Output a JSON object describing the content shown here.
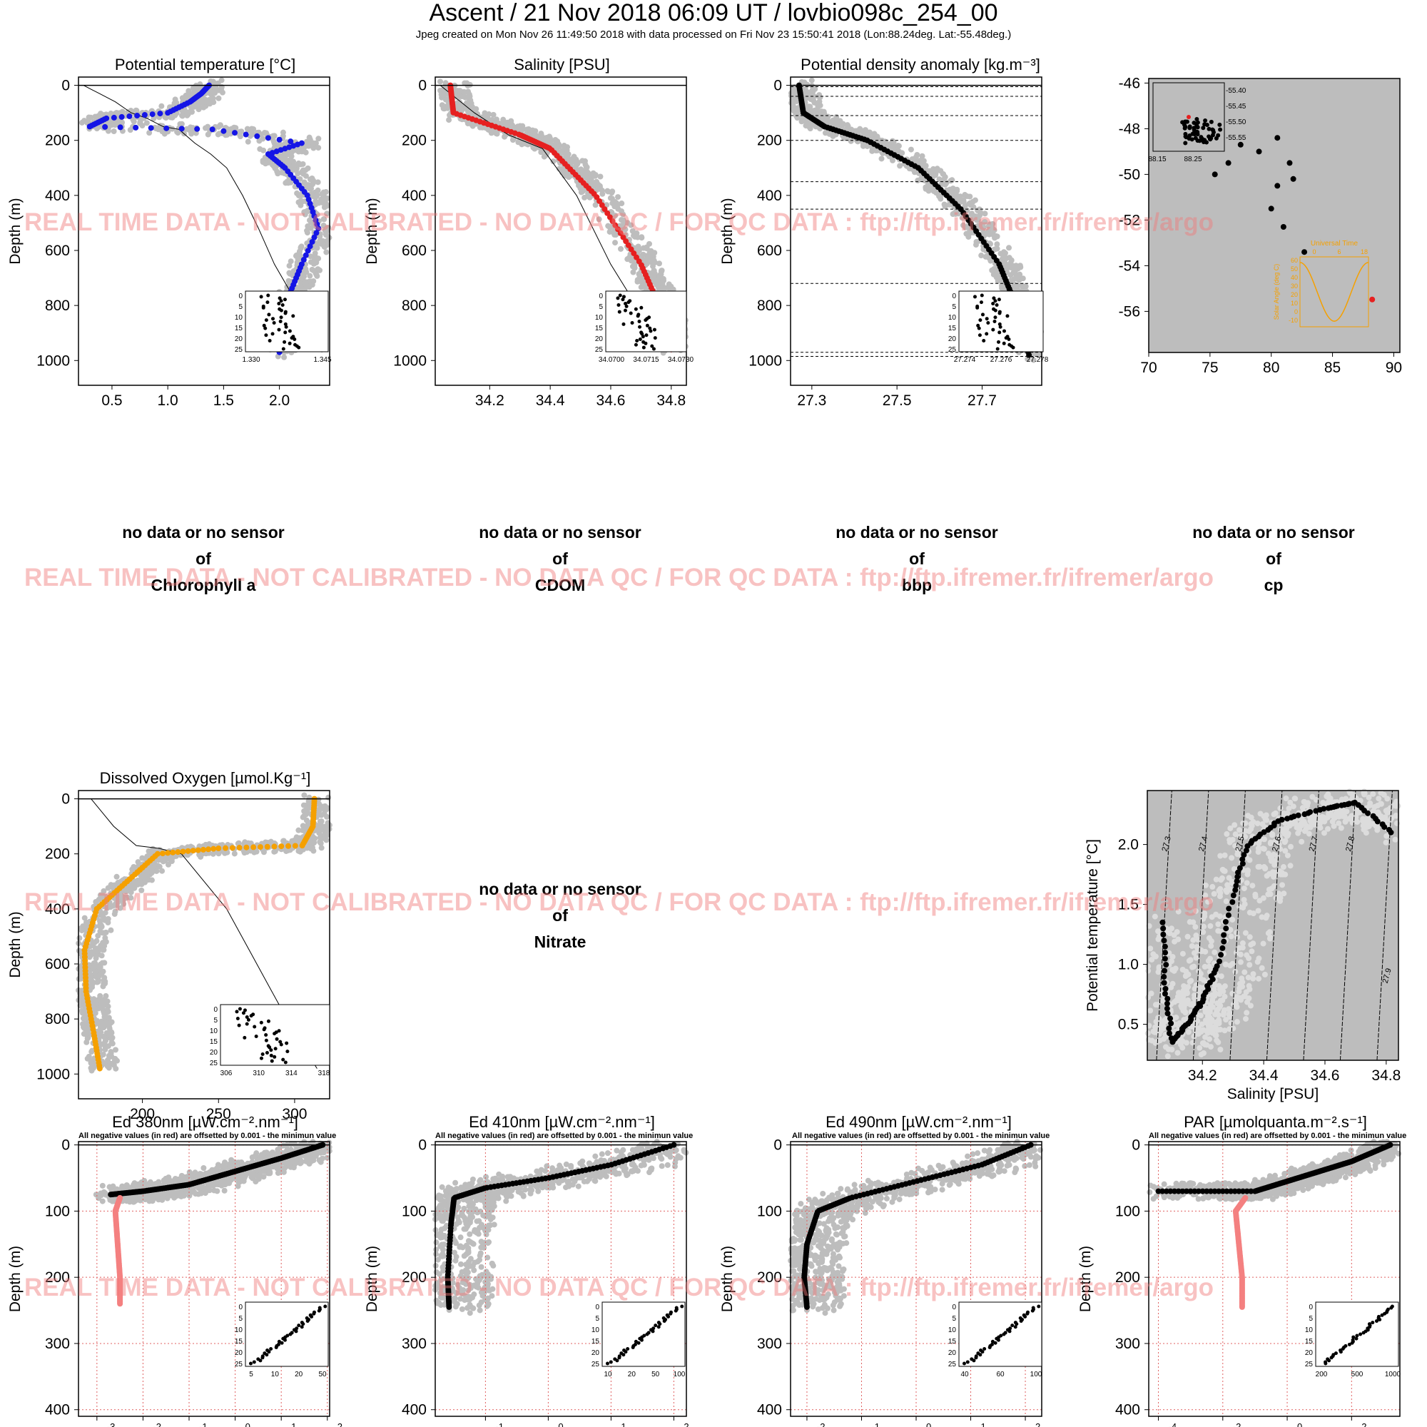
{
  "header": {
    "title": "Ascent / 21 Nov 2018 06:09 UT /  lovbio098c_254_00",
    "subtitle": "Jpeg created on Mon Nov 26 11:49:50 2018 with data processed on Fri Nov 23 15:50:41 2018 (Lon:88.24deg. Lat:-55.48deg.)"
  },
  "watermark": "REAL TIME DATA - NOT CALIBRATED - NO DATA QC   /  FOR QC DATA : ftp://ftp.ifremer.fr/ifremer/argo",
  "colors": {
    "grey": "#bdbdbd",
    "blue": "#1515e6",
    "red": "#e62020",
    "black": "#000000",
    "orange": "#f5a000",
    "pink": "#f48080",
    "grid": "#e06060"
  },
  "nodata": {
    "line1": "no data or no sensor",
    "line2": "of",
    "chl": "Chlorophyll a",
    "cdom": "CDOM",
    "bbp": "bbp",
    "cp": "cp",
    "nitrate": "Nitrate"
  },
  "labels": {
    "depth": "Depth (m)",
    "negnote": "All negative values (in red) are offsetted by 0.001 - the minimun value"
  },
  "chart_data": [
    {
      "id": "temp",
      "type": "scatter",
      "title": "Potential temperature [°C]",
      "ylabel": "Depth (m)",
      "xlim": [
        0.2,
        2.45
      ],
      "ylim": [
        1090,
        -30
      ],
      "xticks": [
        "0.5",
        "1.0",
        "1.5",
        "2.0"
      ],
      "yticks": [
        "0",
        "200",
        "400",
        "600",
        "800",
        "1000"
      ],
      "series": [
        {
          "color": "blue",
          "points": [
            [
              1.37,
              0
            ],
            [
              1.3,
              30
            ],
            [
              1.2,
              60
            ],
            [
              1.0,
              100
            ],
            [
              0.45,
              120
            ],
            [
              0.3,
              150
            ],
            [
              1.4,
              160
            ],
            [
              2.2,
              210
            ],
            [
              1.9,
              250
            ],
            [
              2.05,
              300
            ],
            [
              2.25,
              400
            ],
            [
              2.35,
              520
            ],
            [
              2.2,
              650
            ],
            [
              2.1,
              750
            ],
            [
              2.05,
              880
            ],
            [
              2.0,
              970
            ]
          ]
        }
      ],
      "inset": {
        "xticks": [
          "1.330",
          "1.345"
        ],
        "yticks": [
          "0",
          "5",
          "10",
          "15",
          "20",
          "25"
        ]
      }
    },
    {
      "id": "sal",
      "type": "scatter",
      "title": "Salinity [PSU]",
      "ylabel": "Depth (m)",
      "xlim": [
        34.02,
        34.85
      ],
      "ylim": [
        1090,
        -30
      ],
      "xticks": [
        "34.2",
        "34.4",
        "34.6",
        "34.8"
      ],
      "yticks": [
        "0",
        "200",
        "400",
        "600",
        "800",
        "1000"
      ],
      "series": [
        {
          "color": "red",
          "points": [
            [
              34.07,
              0
            ],
            [
              34.08,
              100
            ],
            [
              34.3,
              180
            ],
            [
              34.4,
              230
            ],
            [
              34.55,
              400
            ],
            [
              34.7,
              650
            ],
            [
              34.78,
              850
            ],
            [
              34.8,
              960
            ]
          ]
        }
      ],
      "inset": {
        "xticks": [
          "34.0700",
          "34.0715",
          "34.0730"
        ],
        "yticks": [
          "0",
          "5",
          "10",
          "15",
          "20",
          "25"
        ]
      }
    },
    {
      "id": "dens",
      "type": "scatter",
      "title": "Potential density anomaly [kg.m⁻³]",
      "ylabel": "Depth (m)",
      "xlim": [
        27.25,
        27.84
      ],
      "ylim": [
        1090,
        -30
      ],
      "xticks": [
        "27.3",
        "27.5",
        "27.7"
      ],
      "yticks": [
        "0",
        "200",
        "400",
        "600",
        "800",
        "1000"
      ],
      "series": [
        {
          "color": "black",
          "points": [
            [
              27.27,
              0
            ],
            [
              27.28,
              100
            ],
            [
              27.33,
              150
            ],
            [
              27.43,
              200
            ],
            [
              27.55,
              300
            ],
            [
              27.65,
              450
            ],
            [
              27.74,
              650
            ],
            [
              27.78,
              800
            ],
            [
              27.81,
              980
            ]
          ]
        }
      ],
      "hlines": [
        5,
        40,
        110,
        200,
        350,
        450,
        720,
        970,
        985
      ],
      "inset": {
        "xticks": [
          "27.274",
          "27.276",
          "27.278"
        ],
        "yticks": [
          "0",
          "5",
          "10",
          "15",
          "20",
          "25"
        ]
      }
    },
    {
      "id": "map",
      "type": "scatter",
      "xlim": [
        70,
        90.5
      ],
      "ylim": [
        -57.8,
        -45.8
      ],
      "xticks": [
        "70",
        "75",
        "80",
        "85",
        "90"
      ],
      "yticks": [
        "-46",
        "-48",
        "-50",
        "-52",
        "-54",
        "-56"
      ],
      "series": [
        {
          "color": "black",
          "points": [
            [
              75.4,
              -50.0
            ],
            [
              76.5,
              -49.5
            ],
            [
              77.5,
              -48.7
            ],
            [
              79,
              -49
            ],
            [
              80.5,
              -48.4
            ],
            [
              81.5,
              -49.5
            ],
            [
              80.5,
              -50.5
            ],
            [
              81.8,
              -50.2
            ],
            [
              80,
              -51.5
            ],
            [
              81,
              -52.3
            ],
            [
              82.7,
              -53.4
            ],
            [
              83.5,
              -54.3
            ],
            [
              85,
              -55
            ],
            [
              86.2,
              -55.8
            ],
            [
              87.5,
              -56
            ]
          ]
        }
      ],
      "current": [
        88.24,
        -55.48
      ],
      "inset": {
        "xticks": [
          "88.15",
          "88.25"
        ],
        "yticks": [
          "-55.40",
          "-55.45",
          "-55.50",
          "-55.55"
        ]
      },
      "sun_inset": {
        "title": "Universal Time",
        "xticks": [
          "0",
          "6",
          "18"
        ],
        "yticks": [
          "60",
          "50",
          "40",
          "30",
          "20",
          "10",
          "0",
          "-10"
        ],
        "ylabel": "Solar Angle (deg C)"
      }
    },
    {
      "id": "oxy",
      "type": "scatter",
      "title": "Dissolved Oxygen [µmol.Kg⁻¹]",
      "ylabel": "Depth (m)",
      "xlim": [
        158,
        323
      ],
      "ylim": [
        1090,
        -30
      ],
      "xticks": [
        "200",
        "250",
        "300"
      ],
      "yticks": [
        "0",
        "200",
        "400",
        "600",
        "800",
        "1000"
      ],
      "series": [
        {
          "color": "orange",
          "points": [
            [
              313,
              0
            ],
            [
              312,
              100
            ],
            [
              305,
              170
            ],
            [
              250,
              180
            ],
            [
              210,
              200
            ],
            [
              190,
              300
            ],
            [
              170,
              400
            ],
            [
              162,
              550
            ],
            [
              163,
              700
            ],
            [
              168,
              850
            ],
            [
              172,
              980
            ]
          ]
        }
      ],
      "inset": {
        "xticks": [
          "306",
          "310",
          "314",
          "318"
        ],
        "yticks": [
          "0",
          "5",
          "10",
          "15",
          "20",
          "25"
        ]
      }
    },
    {
      "id": "ts",
      "type": "scatter",
      "xlabel": "Salinity [PSU]",
      "ylabel": "Potential temperature [°C]",
      "xlim": [
        34.02,
        34.84
      ],
      "ylim": [
        0.2,
        2.45
      ],
      "xticks": [
        "34.2",
        "34.4",
        "34.6",
        "34.8"
      ],
      "yticks": [
        "0.5",
        "1.0",
        "1.5",
        "2.0"
      ],
      "isopycnals": [
        "27.3",
        "27.4",
        "27.5",
        "27.6",
        "27.7",
        "27.8",
        "27.9"
      ],
      "series": [
        {
          "color": "black",
          "points": [
            [
              34.07,
              1.35
            ],
            [
              34.08,
              0.8
            ],
            [
              34.1,
              0.35
            ],
            [
              34.15,
              0.5
            ],
            [
              34.2,
              0.7
            ],
            [
              34.25,
              1.0
            ],
            [
              34.3,
              1.6
            ],
            [
              34.35,
              2.0
            ],
            [
              34.45,
              2.2
            ],
            [
              34.6,
              2.3
            ],
            [
              34.7,
              2.35
            ],
            [
              34.82,
              2.1
            ]
          ]
        }
      ]
    },
    {
      "id": "ed380",
      "type": "scatter",
      "title": "Ed 380nm [µW.cm⁻².nm⁻¹]",
      "ylabel": "Depth (m)",
      "xlog": true,
      "xlim": [
        -3.4,
        2.05
      ],
      "ylim": [
        410,
        -5
      ],
      "xticks": [
        "-3",
        "-2",
        "-1",
        "0",
        "1",
        "2"
      ],
      "yticks": [
        "0",
        "100",
        "200",
        "300",
        "400"
      ],
      "series": [
        {
          "color": "black",
          "points": [
            [
              1.9,
              0
            ],
            [
              1.0,
              20
            ],
            [
              0,
              40
            ],
            [
              -1,
              60
            ],
            [
              -2,
              70
            ],
            [
              -2.7,
              75
            ]
          ]
        },
        {
          "color": "pink",
          "points": [
            [
              -2.5,
              80
            ],
            [
              -2.6,
              100
            ],
            [
              -2.55,
              150
            ],
            [
              -2.5,
              200
            ],
            [
              -2.5,
              240
            ]
          ]
        }
      ],
      "inset": {
        "xticks": [
          "5",
          "10",
          "20",
          "50"
        ],
        "yticks": [
          "0",
          "5",
          "10",
          "15",
          "20",
          "25"
        ]
      }
    },
    {
      "id": "ed410",
      "type": "scatter",
      "title": "Ed 410nm [µW.cm⁻².nm⁻¹]",
      "ylabel": "Depth (m)",
      "xlog": true,
      "xlim": [
        -1.8,
        2.2
      ],
      "ylim": [
        410,
        -5
      ],
      "xticks": [
        "-1",
        "0",
        "1",
        "2"
      ],
      "yticks": [
        "0",
        "100",
        "200",
        "300",
        "400"
      ],
      "series": [
        {
          "color": "black",
          "points": [
            [
              2.0,
              0
            ],
            [
              1.0,
              30
            ],
            [
              0,
              50
            ],
            [
              -1,
              65
            ],
            [
              -1.5,
              80
            ],
            [
              -1.55,
              120
            ],
            [
              -1.6,
              200
            ],
            [
              -1.58,
              245
            ]
          ]
        }
      ],
      "inset": {
        "xticks": [
          "10",
          "20",
          "50",
          "100"
        ],
        "yticks": [
          "0",
          "5",
          "10",
          "15",
          "20",
          "25"
        ]
      }
    },
    {
      "id": "ed490",
      "type": "scatter",
      "title": "Ed 490nm [µW.cm⁻².nm⁻¹]",
      "ylabel": "Depth (m)",
      "xlog": true,
      "xlim": [
        -2.3,
        2.3
      ],
      "ylim": [
        410,
        -5
      ],
      "xticks": [
        "-2",
        "-1",
        "0",
        "1",
        "2"
      ],
      "yticks": [
        "0",
        "100",
        "200",
        "300",
        "400"
      ],
      "series": [
        {
          "color": "black",
          "points": [
            [
              2.1,
              0
            ],
            [
              1.2,
              30
            ],
            [
              0,
              55
            ],
            [
              -1.2,
              80
            ],
            [
              -1.8,
              100
            ],
            [
              -2.0,
              150
            ],
            [
              -2.05,
              200
            ],
            [
              -2.0,
              245
            ]
          ]
        }
      ],
      "inset": {
        "xticks": [
          "40",
          "60",
          "100"
        ],
        "yticks": [
          "0",
          "5",
          "10",
          "15",
          "20",
          "25"
        ]
      }
    },
    {
      "id": "par",
      "type": "scatter",
      "title": "PAR [µmolquanta.m⁻².s⁻¹]",
      "ylabel": "Depth (m)",
      "xlog": true,
      "xlim": [
        -4.3,
        3.5
      ],
      "ylim": [
        410,
        -5
      ],
      "xticks": [
        "-4",
        "-2",
        "0",
        "2"
      ],
      "yticks": [
        "0",
        "100",
        "200",
        "300",
        "400"
      ],
      "series": [
        {
          "color": "black",
          "points": [
            [
              3.2,
              0
            ],
            [
              2,
              25
            ],
            [
              1,
              40
            ],
            [
              0,
              55
            ],
            [
              -1,
              70
            ],
            [
              -4.0,
              70
            ]
          ]
        },
        {
          "color": "pink",
          "points": [
            [
              -1.3,
              80
            ],
            [
              -1.6,
              100
            ],
            [
              -1.5,
              150
            ],
            [
              -1.4,
              200
            ],
            [
              -1.4,
              245
            ]
          ]
        }
      ],
      "inset": {
        "xticks": [
          "200",
          "500",
          "1000"
        ],
        "yticks": [
          "0",
          "5",
          "10",
          "15",
          "20",
          "25"
        ]
      }
    }
  ]
}
